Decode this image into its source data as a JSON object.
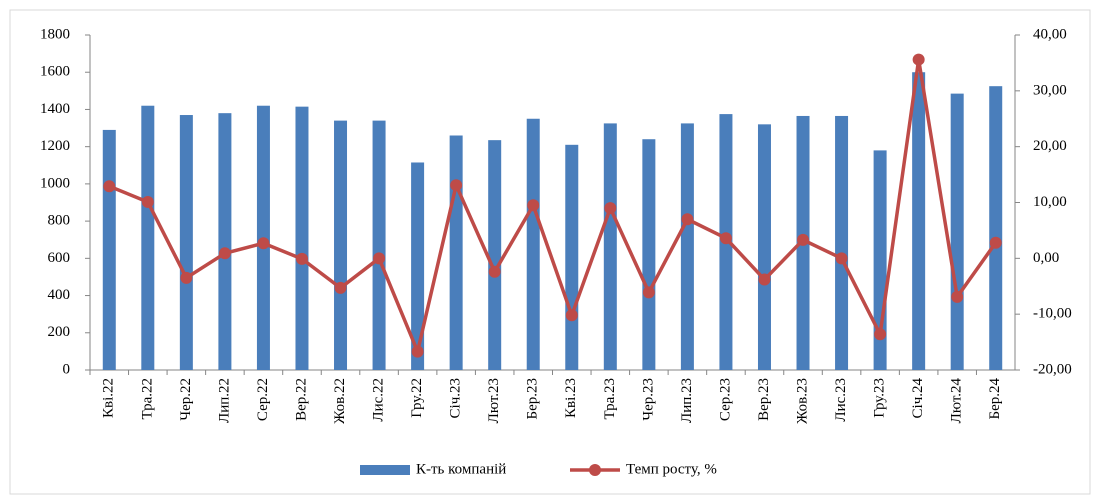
{
  "chart_data": {
    "type": "bar_line",
    "categories": [
      "Кві.22",
      "Тра.22",
      "Чер.22",
      "Лип.22",
      "Сер.22",
      "Вер.22",
      "Жов.22",
      "Лис.22",
      "Гру.22",
      "Січ.23",
      "Лют.23",
      "Бер.23",
      "Кві.23",
      "Тра.23",
      "Чер.23",
      "Лип.23",
      "Сер.23",
      "Вер.23",
      "Жов.23",
      "Лис.23",
      "Гру.23",
      "Січ.24",
      "Лют.24",
      "Бер.24"
    ],
    "series": [
      {
        "name": "К-ть компаній",
        "type": "bar",
        "color": "#4a7ebb",
        "axis": "y",
        "values": [
          1290,
          1420,
          1370,
          1380,
          1420,
          1415,
          1340,
          1340,
          1115,
          1260,
          1235,
          1350,
          1210,
          1325,
          1240,
          1325,
          1375,
          1320,
          1365,
          1365,
          1180,
          1600,
          1485,
          1525
        ]
      },
      {
        "name": "Темп росту, %",
        "type": "line",
        "color": "#be4b48",
        "axis": "y2",
        "values": [
          12.9,
          10.1,
          -3.5,
          0.9,
          2.7,
          -0.1,
          -5.3,
          0,
          -16.7,
          13.1,
          -2.4,
          9.5,
          -10.2,
          9,
          -6.1,
          7,
          3.6,
          -3.8,
          3.3,
          0,
          -13.6,
          35.6,
          -6.9,
          2.8
        ]
      }
    ],
    "ylim": [
      0,
      1800
    ],
    "yticks": [
      0,
      200,
      400,
      600,
      800,
      1000,
      1200,
      1400,
      1600,
      1800
    ],
    "y2lim": [
      -20,
      40
    ],
    "y2ticks": [
      {
        "value": -20,
        "label": "-20,00"
      },
      {
        "value": -10,
        "label": "-10,00"
      },
      {
        "value": 0,
        "label": "0,00"
      },
      {
        "value": 10,
        "label": "10,00"
      },
      {
        "value": 20,
        "label": "20,00"
      },
      {
        "value": 30,
        "label": "30,00"
      },
      {
        "value": 40,
        "label": "40,00"
      }
    ],
    "legend": "bottom"
  }
}
